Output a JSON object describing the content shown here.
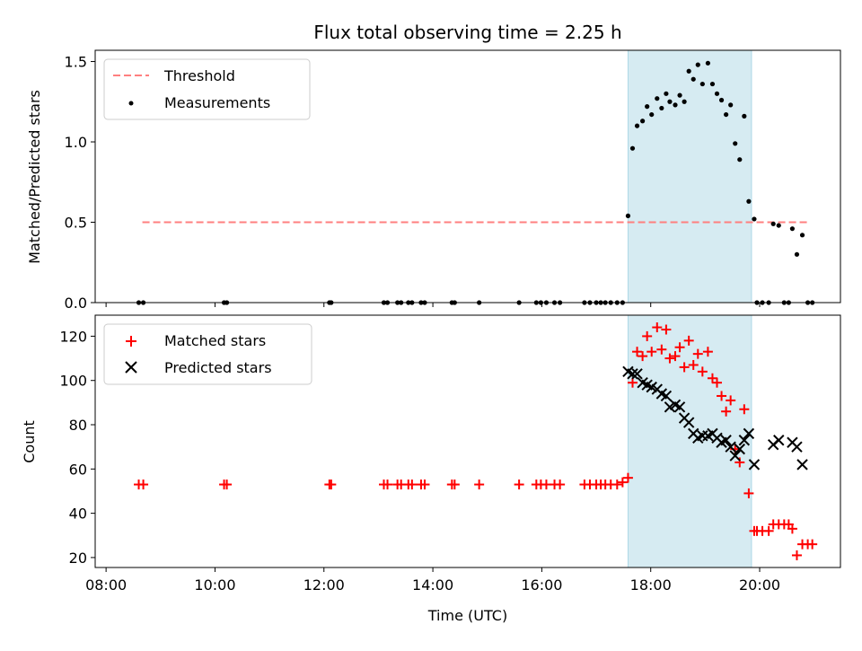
{
  "chart_data": [
    {
      "type": "scatter",
      "title": "Flux total observing time = 2.25 h",
      "xlabel": "",
      "ylabel": "Matched/Predicted stars",
      "x_format": "HH:MM (UTC)",
      "xlim": [
        "07:48",
        "21:29"
      ],
      "ylim": [
        0,
        1.57
      ],
      "yticks": [
        "0.0",
        "0.5",
        "1.0",
        "1.5"
      ],
      "shaded_span": {
        "x_start": "17:35",
        "x_end": "19:51",
        "color": "#add8e6"
      },
      "legend": {
        "placement": "top-left",
        "entries": [
          "Threshold",
          "Measurements"
        ]
      },
      "series": [
        {
          "name": "Threshold",
          "style": "dashed-line",
          "color": "#ff7f7f",
          "points": [
            [
              "08:40",
              0.5
            ],
            [
              "20:53",
              0.5
            ]
          ]
        },
        {
          "name": "Measurements",
          "style": "dot",
          "color": "#000000",
          "points": [
            [
              "08:36",
              0
            ],
            [
              "08:41",
              0
            ],
            [
              "10:10",
              0
            ],
            [
              "10:13",
              0
            ],
            [
              "12:06",
              0
            ],
            [
              "12:08",
              0
            ],
            [
              "13:06",
              0
            ],
            [
              "13:10",
              0
            ],
            [
              "13:21",
              0
            ],
            [
              "13:25",
              0
            ],
            [
              "13:33",
              0
            ],
            [
              "13:37",
              0
            ],
            [
              "13:47",
              0
            ],
            [
              "13:51",
              0
            ],
            [
              "14:21",
              0
            ],
            [
              "14:24",
              0
            ],
            [
              "14:51",
              0
            ],
            [
              "15:35",
              0
            ],
            [
              "15:54",
              0
            ],
            [
              "15:59",
              0
            ],
            [
              "16:05",
              0
            ],
            [
              "16:14",
              0
            ],
            [
              "16:20",
              0
            ],
            [
              "16:47",
              0
            ],
            [
              "16:53",
              0
            ],
            [
              "17:00",
              0
            ],
            [
              "17:05",
              0
            ],
            [
              "17:10",
              0
            ],
            [
              "17:16",
              0
            ],
            [
              "17:23",
              0
            ],
            [
              "17:29",
              0
            ],
            [
              "17:35",
              0.54
            ],
            [
              "17:40",
              0.96
            ],
            [
              "17:45",
              1.1
            ],
            [
              "17:51",
              1.13
            ],
            [
              "17:56",
              1.22
            ],
            [
              "18:01",
              1.17
            ],
            [
              "18:07",
              1.27
            ],
            [
              "18:12",
              1.21
            ],
            [
              "18:17",
              1.3
            ],
            [
              "18:21",
              1.25
            ],
            [
              "18:27",
              1.23
            ],
            [
              "18:32",
              1.29
            ],
            [
              "18:37",
              1.25
            ],
            [
              "18:42",
              1.44
            ],
            [
              "18:47",
              1.39
            ],
            [
              "18:52",
              1.48
            ],
            [
              "18:57",
              1.36
            ],
            [
              "19:03",
              1.49
            ],
            [
              "19:08",
              1.36
            ],
            [
              "19:13",
              1.3
            ],
            [
              "19:18",
              1.26
            ],
            [
              "19:23",
              1.17
            ],
            [
              "19:28",
              1.23
            ],
            [
              "19:33",
              0.99
            ],
            [
              "19:38",
              0.89
            ],
            [
              "19:43",
              1.16
            ],
            [
              "19:48",
              0.63
            ],
            [
              "19:54",
              0.52
            ],
            [
              "19:57",
              0
            ],
            [
              "20:03",
              0
            ],
            [
              "20:10",
              0
            ],
            [
              "20:15",
              0.49
            ],
            [
              "20:21",
              0.48
            ],
            [
              "20:27",
              0
            ],
            [
              "20:32",
              0
            ],
            [
              "20:36",
              0.46
            ],
            [
              "20:41",
              0.3
            ],
            [
              "20:47",
              0.42
            ],
            [
              "20:53",
              0
            ],
            [
              "20:58",
              0
            ]
          ]
        }
      ]
    },
    {
      "type": "scatter",
      "title": "",
      "xlabel": "Time (UTC)",
      "ylabel": "Count",
      "x_format": "HH:MM (UTC)",
      "xlim": [
        "07:48",
        "21:29"
      ],
      "xticks": [
        "08:00",
        "10:00",
        "12:00",
        "14:00",
        "16:00",
        "18:00",
        "20:00"
      ],
      "ylim": [
        15.5,
        129.5
      ],
      "yticks": [
        "20",
        "40",
        "60",
        "80",
        "100",
        "120"
      ],
      "shaded_span": {
        "x_start": "17:35",
        "x_end": "19:51",
        "color": "#add8e6"
      },
      "legend": {
        "placement": "top-left",
        "entries": [
          "Matched stars",
          "Predicted stars"
        ]
      },
      "series": [
        {
          "name": "Matched stars",
          "marker": "plus",
          "color": "#ff0000",
          "points": [
            [
              "08:36",
              53
            ],
            [
              "08:41",
              53
            ],
            [
              "10:10",
              53
            ],
            [
              "10:13",
              53
            ],
            [
              "12:06",
              53
            ],
            [
              "12:08",
              53
            ],
            [
              "13:06",
              53
            ],
            [
              "13:10",
              53
            ],
            [
              "13:21",
              53
            ],
            [
              "13:25",
              53
            ],
            [
              "13:33",
              53
            ],
            [
              "13:37",
              53
            ],
            [
              "13:47",
              53
            ],
            [
              "13:51",
              53
            ],
            [
              "14:21",
              53
            ],
            [
              "14:24",
              53
            ],
            [
              "14:51",
              53
            ],
            [
              "15:35",
              53
            ],
            [
              "15:54",
              53
            ],
            [
              "15:59",
              53
            ],
            [
              "16:05",
              53
            ],
            [
              "16:14",
              53
            ],
            [
              "16:20",
              53
            ],
            [
              "16:47",
              53
            ],
            [
              "16:53",
              53
            ],
            [
              "17:00",
              53
            ],
            [
              "17:05",
              53
            ],
            [
              "17:10",
              53
            ],
            [
              "17:16",
              53
            ],
            [
              "17:23",
              53
            ],
            [
              "17:29",
              54
            ],
            [
              "17:35",
              56
            ],
            [
              "17:40",
              99
            ],
            [
              "17:45",
              113
            ],
            [
              "17:51",
              111
            ],
            [
              "17:56",
              120
            ],
            [
              "18:01",
              113
            ],
            [
              "18:07",
              124
            ],
            [
              "18:12",
              114
            ],
            [
              "18:17",
              123
            ],
            [
              "18:21",
              110
            ],
            [
              "18:27",
              111
            ],
            [
              "18:32",
              115
            ],
            [
              "18:37",
              106
            ],
            [
              "18:42",
              118
            ],
            [
              "18:47",
              107
            ],
            [
              "18:52",
              112
            ],
            [
              "18:57",
              104
            ],
            [
              "19:03",
              113
            ],
            [
              "19:08",
              101
            ],
            [
              "19:13",
              99
            ],
            [
              "19:18",
              93
            ],
            [
              "19:23",
              86
            ],
            [
              "19:28",
              91
            ],
            [
              "19:33",
              69
            ],
            [
              "19:38",
              63
            ],
            [
              "19:43",
              87
            ],
            [
              "19:48",
              49
            ],
            [
              "19:54",
              32
            ],
            [
              "19:57",
              32
            ],
            [
              "20:03",
              32
            ],
            [
              "20:10",
              32
            ],
            [
              "20:15",
              35
            ],
            [
              "20:21",
              35
            ],
            [
              "20:27",
              35
            ],
            [
              "20:32",
              35
            ],
            [
              "20:36",
              33
            ],
            [
              "20:41",
              21
            ],
            [
              "20:47",
              26
            ],
            [
              "20:53",
              26
            ],
            [
              "20:58",
              26
            ]
          ]
        },
        {
          "name": "Predicted stars",
          "marker": "x",
          "color": "#000000",
          "points": [
            [
              "17:35",
              104
            ],
            [
              "17:40",
              103
            ],
            [
              "17:45",
              103
            ],
            [
              "17:51",
              99
            ],
            [
              "17:56",
              98
            ],
            [
              "18:01",
              97
            ],
            [
              "18:07",
              96
            ],
            [
              "18:12",
              94
            ],
            [
              "18:17",
              93
            ],
            [
              "18:21",
              88
            ],
            [
              "18:27",
              89
            ],
            [
              "18:32",
              88
            ],
            [
              "18:37",
              83
            ],
            [
              "18:42",
              81
            ],
            [
              "18:47",
              76
            ],
            [
              "18:52",
              74
            ],
            [
              "18:57",
              75
            ],
            [
              "19:03",
              75
            ],
            [
              "19:08",
              76
            ],
            [
              "19:13",
              74
            ],
            [
              "19:18",
              72
            ],
            [
              "19:23",
              73
            ],
            [
              "19:28",
              70
            ],
            [
              "19:33",
              66
            ],
            [
              "19:38",
              69
            ],
            [
              "19:43",
              73
            ],
            [
              "19:48",
              76
            ],
            [
              "19:54",
              62
            ],
            [
              "20:15",
              71
            ],
            [
              "20:21",
              73
            ],
            [
              "20:36",
              72
            ],
            [
              "20:41",
              70
            ],
            [
              "20:47",
              62
            ]
          ]
        }
      ]
    }
  ]
}
